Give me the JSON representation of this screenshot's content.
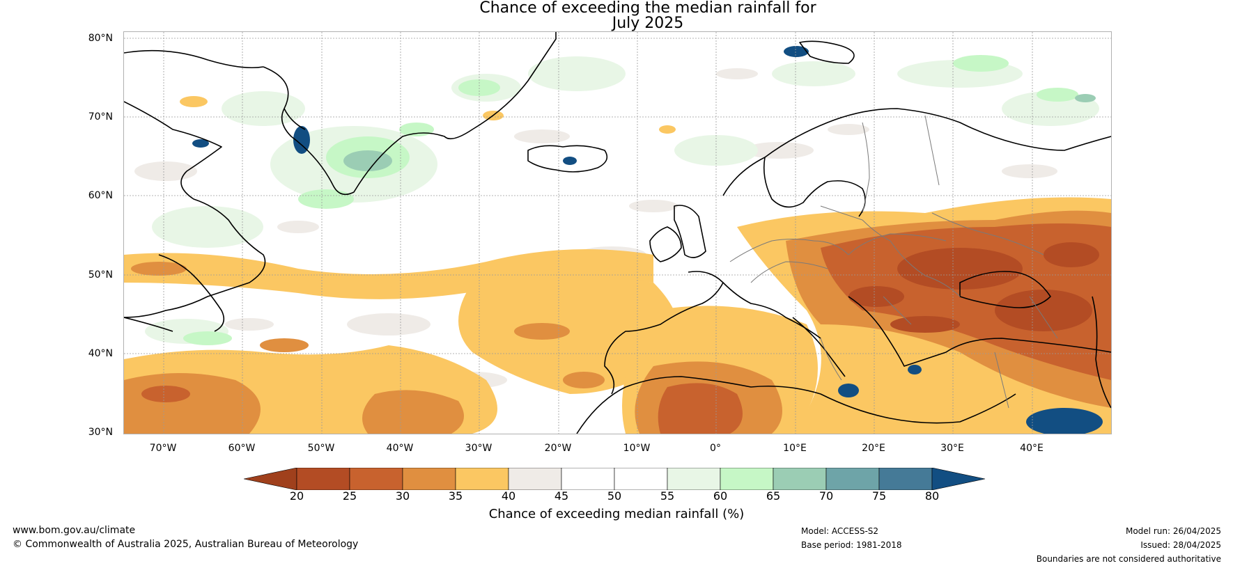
{
  "title": {
    "line1": "Chance of exceeding the median rainfall for",
    "line2": "July 2025"
  },
  "map": {
    "lat_labels": [
      "80°N",
      "70°N",
      "60°N",
      "50°N",
      "40°N",
      "30°N"
    ],
    "lon_labels": [
      "70°W",
      "60°W",
      "50°W",
      "40°W",
      "30°W",
      "20°W",
      "10°W",
      "0°",
      "10°E",
      "20°E",
      "30°E",
      "40°E"
    ]
  },
  "colorbar": {
    "ticks": [
      "20",
      "25",
      "30",
      "35",
      "40",
      "45",
      "50",
      "55",
      "60",
      "65",
      "70",
      "75",
      "80"
    ],
    "label": "Chance of exceeding median rainfall (%)",
    "colors": {
      "below_20": "#a0401c",
      "20_25": "#b34c24",
      "25_30": "#c8622e",
      "30_35": "#e08f40",
      "35_40": "#fbc762",
      "40_45": "#efebe7",
      "45_50": "#ffffff",
      "50_55": "#ffffff",
      "55_60": "#e8f6e6",
      "60_65": "#c6f7c6",
      "65_70": "#9bcdb4",
      "70_75": "#6ea4a8",
      "75_80": "#457a97",
      "above_80": "#124e82"
    }
  },
  "footer": {
    "website": "www.bom.gov.au/climate",
    "copyright": "© Commonwealth of Australia 2025, Australian Bureau of Meteorology",
    "model": "Model: ACCESS-S2",
    "base_period": "Base period: 1981-2018",
    "model_run": "Model run: 26/04/2025",
    "issued": "Issued: 28/04/2025",
    "boundaries_note": "Boundaries are not considered authoritative"
  }
}
